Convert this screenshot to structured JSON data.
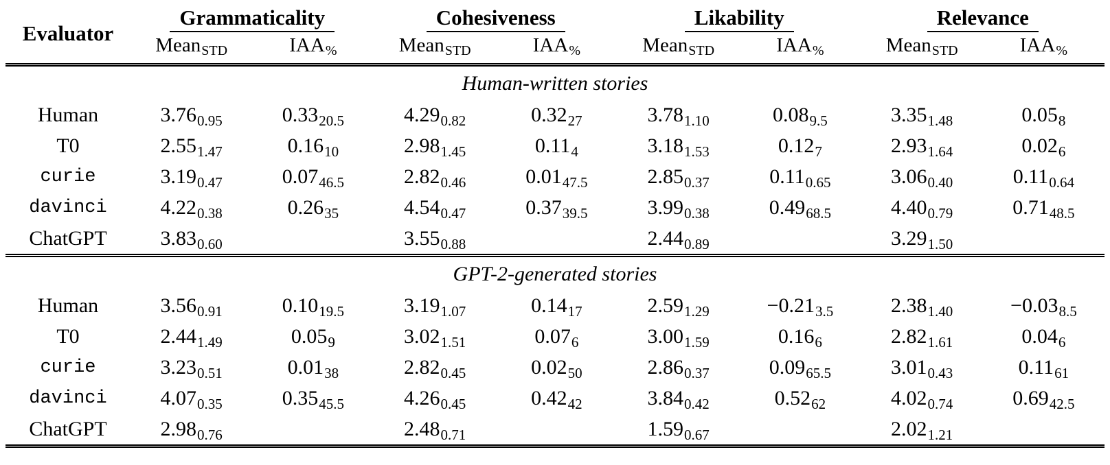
{
  "table": {
    "evaluator_header": "Evaluator",
    "groups": [
      {
        "label": "Grammaticality"
      },
      {
        "label": "Cohesiveness"
      },
      {
        "label": "Likability"
      },
      {
        "label": "Relevance"
      }
    ],
    "subheaders": {
      "mean": "Mean",
      "mean_sub": "STD",
      "iaa": "IAA",
      "iaa_sub": "%"
    },
    "sections": [
      {
        "title": "Human-written stories",
        "rows": [
          {
            "evaluator": "Human",
            "tt": false,
            "cells": [
              {
                "v": "3.76",
                "s": "0.95"
              },
              {
                "v": "0.33",
                "s": "20.5"
              },
              {
                "v": "4.29",
                "s": "0.82"
              },
              {
                "v": "0.32",
                "s": "27"
              },
              {
                "v": "3.78",
                "s": "1.10"
              },
              {
                "v": "0.08",
                "s": "9.5"
              },
              {
                "v": "3.35",
                "s": "1.48"
              },
              {
                "v": "0.05",
                "s": "8"
              }
            ]
          },
          {
            "evaluator": "T0",
            "tt": false,
            "cells": [
              {
                "v": "2.55",
                "s": "1.47"
              },
              {
                "v": "0.16",
                "s": "10"
              },
              {
                "v": "2.98",
                "s": "1.45"
              },
              {
                "v": "0.11",
                "s": "4"
              },
              {
                "v": "3.18",
                "s": "1.53"
              },
              {
                "v": "0.12",
                "s": "7"
              },
              {
                "v": "2.93",
                "s": "1.64"
              },
              {
                "v": "0.02",
                "s": "6"
              }
            ]
          },
          {
            "evaluator": "curie",
            "tt": true,
            "cells": [
              {
                "v": "3.19",
                "s": "0.47"
              },
              {
                "v": "0.07",
                "s": "46.5"
              },
              {
                "v": "2.82",
                "s": "0.46"
              },
              {
                "v": "0.01",
                "s": "47.5"
              },
              {
                "v": "2.85",
                "s": "0.37"
              },
              {
                "v": "0.11",
                "s": "0.65"
              },
              {
                "v": "3.06",
                "s": "0.40"
              },
              {
                "v": "0.11",
                "s": "0.64"
              }
            ]
          },
          {
            "evaluator": "davinci",
            "tt": true,
            "cells": [
              {
                "v": "4.22",
                "s": "0.38"
              },
              {
                "v": "0.26",
                "s": "35"
              },
              {
                "v": "4.54",
                "s": "0.47"
              },
              {
                "v": "0.37",
                "s": "39.5"
              },
              {
                "v": "3.99",
                "s": "0.38"
              },
              {
                "v": "0.49",
                "s": "68.5"
              },
              {
                "v": "4.40",
                "s": "0.79"
              },
              {
                "v": "0.71",
                "s": "48.5"
              }
            ]
          },
          {
            "evaluator": "ChatGPT",
            "tt": false,
            "cells": [
              {
                "v": "3.83",
                "s": "0.60"
              },
              null,
              {
                "v": "3.55",
                "s": "0.88"
              },
              null,
              {
                "v": "2.44",
                "s": "0.89"
              },
              null,
              {
                "v": "3.29",
                "s": "1.50"
              },
              null
            ]
          }
        ]
      },
      {
        "title": "GPT-2-generated stories",
        "rows": [
          {
            "evaluator": "Human",
            "tt": false,
            "cells": [
              {
                "v": "3.56",
                "s": "0.91"
              },
              {
                "v": "0.10",
                "s": "19.5"
              },
              {
                "v": "3.19",
                "s": "1.07"
              },
              {
                "v": "0.14",
                "s": "17"
              },
              {
                "v": "2.59",
                "s": "1.29"
              },
              {
                "v": "−0.21",
                "s": "3.5"
              },
              {
                "v": "2.38",
                "s": "1.40"
              },
              {
                "v": "−0.03",
                "s": "8.5"
              }
            ]
          },
          {
            "evaluator": "T0",
            "tt": false,
            "cells": [
              {
                "v": "2.44",
                "s": "1.49"
              },
              {
                "v": "0.05",
                "s": "9"
              },
              {
                "v": "3.02",
                "s": "1.51"
              },
              {
                "v": "0.07",
                "s": "6"
              },
              {
                "v": "3.00",
                "s": "1.59"
              },
              {
                "v": "0.16",
                "s": "6"
              },
              {
                "v": "2.82",
                "s": "1.61"
              },
              {
                "v": "0.04",
                "s": "6"
              }
            ]
          },
          {
            "evaluator": "curie",
            "tt": true,
            "cells": [
              {
                "v": "3.23",
                "s": "0.51"
              },
              {
                "v": "0.01",
                "s": "38"
              },
              {
                "v": "2.82",
                "s": "0.45"
              },
              {
                "v": "0.02",
                "s": "50"
              },
              {
                "v": "2.86",
                "s": "0.37"
              },
              {
                "v": "0.09",
                "s": "65.5"
              },
              {
                "v": "3.01",
                "s": "0.43"
              },
              {
                "v": "0.11",
                "s": "61"
              }
            ]
          },
          {
            "evaluator": "davinci",
            "tt": true,
            "cells": [
              {
                "v": "4.07",
                "s": "0.35"
              },
              {
                "v": "0.35",
                "s": "45.5"
              },
              {
                "v": "4.26",
                "s": "0.45"
              },
              {
                "v": "0.42",
                "s": "42"
              },
              {
                "v": "3.84",
                "s": "0.42"
              },
              {
                "v": "0.52",
                "s": "62"
              },
              {
                "v": "4.02",
                "s": "0.74"
              },
              {
                "v": "0.69",
                "s": "42.5"
              }
            ]
          },
          {
            "evaluator": "ChatGPT",
            "tt": false,
            "cells": [
              {
                "v": "2.98",
                "s": "0.76"
              },
              null,
              {
                "v": "2.48",
                "s": "0.71"
              },
              null,
              {
                "v": "1.59",
                "s": "0.67"
              },
              null,
              {
                "v": "2.02",
                "s": "1.21"
              },
              null
            ]
          }
        ]
      }
    ]
  }
}
